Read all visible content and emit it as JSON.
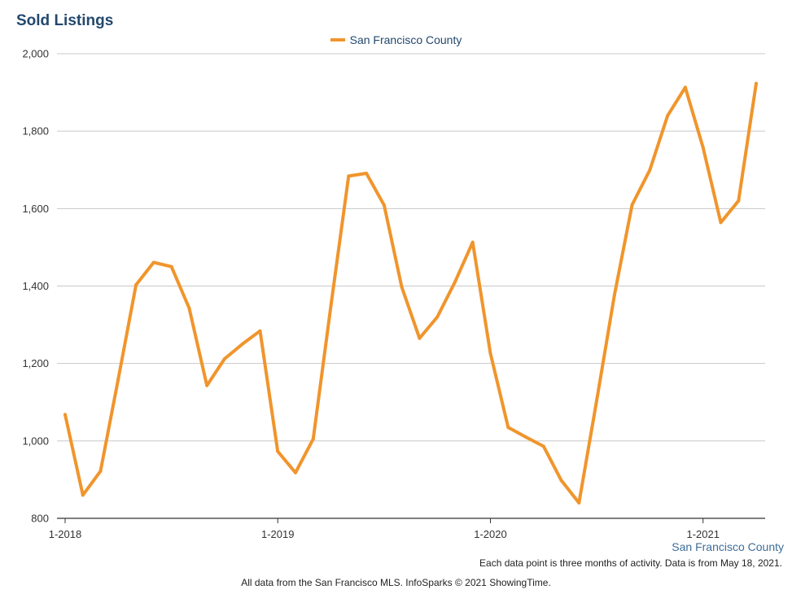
{
  "title": "Sold Listings",
  "legend": {
    "label": "San Francisco County",
    "color": "#f0952c"
  },
  "corner_label": "San Francisco County",
  "note": "Each data point is three months of activity. Data is from May 18, 2021.",
  "footer": "All data from the San Francisco MLS. InfoSparks © 2021 ShowingTime.",
  "chart_data": {
    "type": "line",
    "title": "Sold Listings",
    "xlabel": "",
    "ylabel": "",
    "ylim": [
      800,
      2000
    ],
    "yticks": [
      800,
      1000,
      1200,
      1400,
      1600,
      1800,
      2000
    ],
    "ytick_labels": [
      "800",
      "1,000",
      "1,200",
      "1,400",
      "1,600",
      "1,800",
      "2,000"
    ],
    "xticks": [
      "1-2018",
      "1-2019",
      "1-2020",
      "1-2021"
    ],
    "x_start": "1-2018",
    "x_interval": "monthly",
    "grid": "horizontal",
    "legend_position": "top-center",
    "series": [
      {
        "name": "San Francisco County",
        "color": "#f0952c",
        "values": [
          1068,
          860,
          922,
          1160,
          1403,
          1461,
          1450,
          1343,
          1143,
          1212,
          1250,
          1284,
          973,
          918,
          1005,
          1350,
          1684,
          1691,
          1609,
          1397,
          1265,
          1320,
          1410,
          1513,
          1226,
          1035,
          1010,
          986,
          898,
          840,
          1105,
          1377,
          1610,
          1700,
          1840,
          1913,
          1758,
          1564,
          1620,
          1923
        ]
      }
    ]
  }
}
